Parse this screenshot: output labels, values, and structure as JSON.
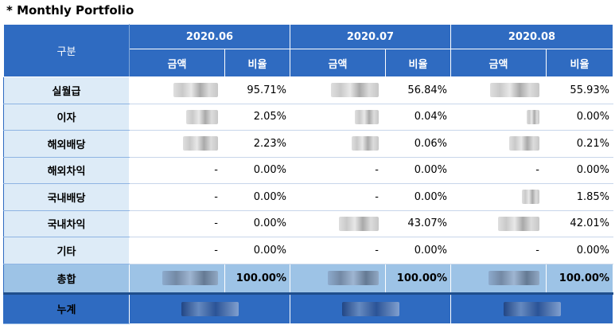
{
  "title": "* Monthly Portfolio",
  "table": {
    "category_header": "구분",
    "months": [
      "2020.06",
      "2020.07",
      "2020.08"
    ],
    "amount_label": "금액",
    "ratio_label": "비율",
    "rows": [
      {
        "label": "실월급",
        "amounts": [
          "",
          "",
          ""
        ],
        "ratios": [
          "95.71%",
          "56.84%",
          "55.93%"
        ]
      },
      {
        "label": "이자",
        "amounts": [
          "",
          "",
          ""
        ],
        "ratios": [
          "2.05%",
          "0.04%",
          "0.00%"
        ]
      },
      {
        "label": "해외배당",
        "amounts": [
          "",
          "",
          ""
        ],
        "ratios": [
          "2.23%",
          "0.06%",
          "0.21%"
        ]
      },
      {
        "label": "해외차익",
        "amounts": [
          "-",
          "-",
          "-"
        ],
        "ratios": [
          "0.00%",
          "0.00%",
          "0.00%"
        ]
      },
      {
        "label": "국내배당",
        "amounts": [
          "-",
          "-",
          ""
        ],
        "ratios": [
          "0.00%",
          "0.00%",
          "1.85%"
        ]
      },
      {
        "label": "국내차익",
        "amounts": [
          "-",
          "",
          ""
        ],
        "ratios": [
          "0.00%",
          "43.07%",
          "42.01%"
        ]
      },
      {
        "label": "기타",
        "amounts": [
          "-",
          "-",
          "-"
        ],
        "ratios": [
          "0.00%",
          "0.00%",
          "0.00%"
        ]
      }
    ],
    "total": {
      "label": "총합",
      "ratios": [
        "100.00%",
        "100.00%",
        "100.00%"
      ]
    },
    "cumulative": {
      "label": "누계"
    }
  }
}
